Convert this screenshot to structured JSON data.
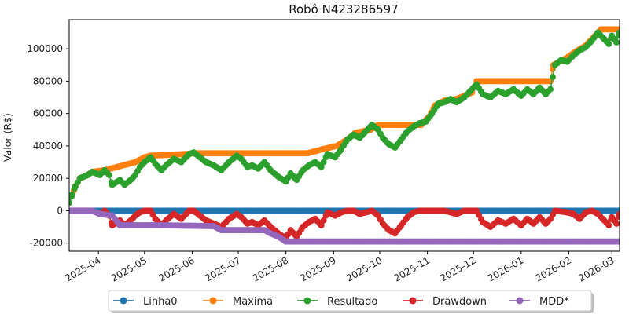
{
  "chart_data": {
    "type": "line",
    "title": "Robô N423286597",
    "xlabel": "",
    "ylabel": "Valor (R$)",
    "x_range": [
      "2025-03-13",
      "2026-03-06"
    ],
    "ylim": [
      -25000,
      118000
    ],
    "y_ticks": [
      -20000,
      0,
      20000,
      40000,
      60000,
      80000,
      100000
    ],
    "x_ticks": [
      "2025-04",
      "2025-05",
      "2025-06",
      "2025-07",
      "2025-08",
      "2025-09",
      "2025-10",
      "2025-11",
      "2025-12",
      "2026-01",
      "2026-02",
      "2026-03"
    ],
    "grid": false,
    "legend_position": "bottom-center",
    "marker": "circle",
    "series": [
      {
        "name": "Linha0",
        "color": "#1f77b4",
        "points": [
          [
            "2025-03-13",
            0
          ],
          [
            "2026-03-06",
            0
          ]
        ]
      },
      {
        "name": "Maxima",
        "color": "#ff7f0e",
        "points": [
          [
            "2025-03-13",
            5000
          ],
          [
            "2025-03-17",
            15000
          ],
          [
            "2025-03-20",
            20000
          ],
          [
            "2025-03-25",
            22000
          ],
          [
            "2025-03-28",
            24000
          ],
          [
            "2025-04-05",
            25000
          ],
          [
            "2025-04-25",
            30000
          ],
          [
            "2025-05-01",
            33000
          ],
          [
            "2025-05-05",
            34000
          ],
          [
            "2025-05-28",
            35000
          ],
          [
            "2025-06-02",
            35500
          ],
          [
            "2025-08-15",
            35500
          ],
          [
            "2025-08-25",
            38000
          ],
          [
            "2025-09-03",
            40000
          ],
          [
            "2025-09-10",
            44000
          ],
          [
            "2025-09-15",
            48000
          ],
          [
            "2025-09-25",
            50000
          ],
          [
            "2025-09-30",
            53000
          ],
          [
            "2025-10-28",
            53000
          ],
          [
            "2025-11-02",
            58000
          ],
          [
            "2025-11-06",
            65000
          ],
          [
            "2025-11-12",
            68000
          ],
          [
            "2025-11-20",
            69000
          ],
          [
            "2025-11-30",
            73000
          ],
          [
            "2025-12-03",
            80000
          ],
          [
            "2026-01-20",
            80000
          ],
          [
            "2026-01-22",
            90000
          ],
          [
            "2026-01-30",
            94000
          ],
          [
            "2026-02-05",
            98000
          ],
          [
            "2026-02-12",
            102000
          ],
          [
            "2026-02-18",
            108000
          ],
          [
            "2026-02-22",
            112000
          ],
          [
            "2026-03-06",
            112000
          ]
        ]
      },
      {
        "name": "Resultado",
        "color": "#2ca02c",
        "points": [
          [
            "2025-03-13",
            5000
          ],
          [
            "2025-03-15",
            10000
          ],
          [
            "2025-03-17",
            15000
          ],
          [
            "2025-03-20",
            20000
          ],
          [
            "2025-03-25",
            22000
          ],
          [
            "2025-03-28",
            24000
          ],
          [
            "2025-04-02",
            22000
          ],
          [
            "2025-04-05",
            25000
          ],
          [
            "2025-04-08",
            22000
          ],
          [
            "2025-04-10",
            16000
          ],
          [
            "2025-04-15",
            19000
          ],
          [
            "2025-04-18",
            16000
          ],
          [
            "2025-04-22",
            19000
          ],
          [
            "2025-04-25",
            22000
          ],
          [
            "2025-04-28",
            27000
          ],
          [
            "2025-05-01",
            30000
          ],
          [
            "2025-05-05",
            33000
          ],
          [
            "2025-05-08",
            29000
          ],
          [
            "2025-05-12",
            25000
          ],
          [
            "2025-05-15",
            28000
          ],
          [
            "2025-05-20",
            32000
          ],
          [
            "2025-05-25",
            30000
          ],
          [
            "2025-05-30",
            35000
          ],
          [
            "2025-06-02",
            36000
          ],
          [
            "2025-06-06",
            33000
          ],
          [
            "2025-06-10",
            30000
          ],
          [
            "2025-06-15",
            28000
          ],
          [
            "2025-06-20",
            25000
          ],
          [
            "2025-06-25",
            30000
          ],
          [
            "2025-06-30",
            34000
          ],
          [
            "2025-07-03",
            32000
          ],
          [
            "2025-07-07",
            27000
          ],
          [
            "2025-07-10",
            28000
          ],
          [
            "2025-07-14",
            26000
          ],
          [
            "2025-07-18",
            30000
          ],
          [
            "2025-07-22",
            25000
          ],
          [
            "2025-07-27",
            21000
          ],
          [
            "2025-08-01",
            18000
          ],
          [
            "2025-08-04",
            23000
          ],
          [
            "2025-08-08",
            19000
          ],
          [
            "2025-08-12",
            25000
          ],
          [
            "2025-08-16",
            28000
          ],
          [
            "2025-08-20",
            30000
          ],
          [
            "2025-08-24",
            27000
          ],
          [
            "2025-08-28",
            35000
          ],
          [
            "2025-09-02",
            33000
          ],
          [
            "2025-09-06",
            38000
          ],
          [
            "2025-09-10",
            44000
          ],
          [
            "2025-09-14",
            47000
          ],
          [
            "2025-09-18",
            45000
          ],
          [
            "2025-09-22",
            49000
          ],
          [
            "2025-09-26",
            53000
          ],
          [
            "2025-09-30",
            50000
          ],
          [
            "2025-10-03",
            45000
          ],
          [
            "2025-10-07",
            41000
          ],
          [
            "2025-10-11",
            39000
          ],
          [
            "2025-10-15",
            44000
          ],
          [
            "2025-10-19",
            49000
          ],
          [
            "2025-10-23",
            52000
          ],
          [
            "2025-10-27",
            54000
          ],
          [
            "2025-10-31",
            55000
          ],
          [
            "2025-11-04",
            60000
          ],
          [
            "2025-11-08",
            66000
          ],
          [
            "2025-11-12",
            67000
          ],
          [
            "2025-11-16",
            69000
          ],
          [
            "2025-11-20",
            67000
          ],
          [
            "2025-11-25",
            70000
          ],
          [
            "2025-11-29",
            74000
          ],
          [
            "2025-12-03",
            78000
          ],
          [
            "2025-12-07",
            72000
          ],
          [
            "2025-12-12",
            70000
          ],
          [
            "2025-12-17",
            74000
          ],
          [
            "2025-12-22",
            72000
          ],
          [
            "2025-12-27",
            75000
          ],
          [
            "2026-01-01",
            71000
          ],
          [
            "2026-01-05",
            75000
          ],
          [
            "2026-01-09",
            72000
          ],
          [
            "2026-01-13",
            76000
          ],
          [
            "2026-01-17",
            72000
          ],
          [
            "2026-01-20",
            75000
          ],
          [
            "2026-01-23",
            90000
          ],
          [
            "2026-01-27",
            93000
          ],
          [
            "2026-01-31",
            92000
          ],
          [
            "2026-02-04",
            96000
          ],
          [
            "2026-02-08",
            99000
          ],
          [
            "2026-02-12",
            101000
          ],
          [
            "2026-02-16",
            105000
          ],
          [
            "2026-02-20",
            110000
          ],
          [
            "2026-02-24",
            106000
          ],
          [
            "2026-02-27",
            103000
          ],
          [
            "2026-03-01",
            108000
          ],
          [
            "2026-03-04",
            104000
          ],
          [
            "2026-03-06",
            110000
          ]
        ]
      },
      {
        "name": "Drawdown",
        "color": "#d62728",
        "points": [
          [
            "2025-03-13",
            0
          ],
          [
            "2025-03-28",
            0
          ],
          [
            "2025-04-02",
            -2000
          ],
          [
            "2025-04-05",
            0
          ],
          [
            "2025-04-08",
            -3000
          ],
          [
            "2025-04-10",
            -9000
          ],
          [
            "2025-04-15",
            -6000
          ],
          [
            "2025-04-18",
            -9000
          ],
          [
            "2025-04-22",
            -6000
          ],
          [
            "2025-04-25",
            -3000
          ],
          [
            "2025-04-28",
            -1000
          ],
          [
            "2025-05-01",
            0
          ],
          [
            "2025-05-05",
            0
          ],
          [
            "2025-05-08",
            -5000
          ],
          [
            "2025-05-12",
            -9000
          ],
          [
            "2025-05-15",
            -6000
          ],
          [
            "2025-05-20",
            -2000
          ],
          [
            "2025-05-25",
            -5000
          ],
          [
            "2025-05-30",
            0
          ],
          [
            "2025-06-02",
            0
          ],
          [
            "2025-06-06",
            -3000
          ],
          [
            "2025-06-10",
            -6000
          ],
          [
            "2025-06-15",
            -8000
          ],
          [
            "2025-06-20",
            -10000
          ],
          [
            "2025-06-25",
            -5000
          ],
          [
            "2025-06-30",
            -2000
          ],
          [
            "2025-07-03",
            -4000
          ],
          [
            "2025-07-07",
            -8000
          ],
          [
            "2025-07-10",
            -7000
          ],
          [
            "2025-07-14",
            -9000
          ],
          [
            "2025-07-18",
            -6000
          ],
          [
            "2025-07-22",
            -10000
          ],
          [
            "2025-07-27",
            -14000
          ],
          [
            "2025-08-01",
            -17000
          ],
          [
            "2025-08-04",
            -12000
          ],
          [
            "2025-08-08",
            -16000
          ],
          [
            "2025-08-12",
            -10000
          ],
          [
            "2025-08-16",
            -7000
          ],
          [
            "2025-08-20",
            -5000
          ],
          [
            "2025-08-24",
            -9000
          ],
          [
            "2025-08-28",
            -1000
          ],
          [
            "2025-09-02",
            -3000
          ],
          [
            "2025-09-06",
            -1000
          ],
          [
            "2025-09-10",
            0
          ],
          [
            "2025-09-14",
            0
          ],
          [
            "2025-09-18",
            -2000
          ],
          [
            "2025-09-22",
            -1000
          ],
          [
            "2025-09-26",
            0
          ],
          [
            "2025-09-30",
            -3000
          ],
          [
            "2025-10-03",
            -8000
          ],
          [
            "2025-10-07",
            -12000
          ],
          [
            "2025-10-11",
            -14000
          ],
          [
            "2025-10-15",
            -9000
          ],
          [
            "2025-10-19",
            -4000
          ],
          [
            "2025-10-23",
            -1000
          ],
          [
            "2025-10-27",
            0
          ],
          [
            "2025-11-04",
            0
          ],
          [
            "2025-11-12",
            0
          ],
          [
            "2025-11-20",
            -2000
          ],
          [
            "2025-11-25",
            0
          ],
          [
            "2025-11-29",
            0
          ],
          [
            "2025-12-03",
            0
          ],
          [
            "2025-12-07",
            -7000
          ],
          [
            "2025-12-12",
            -10000
          ],
          [
            "2025-12-17",
            -6000
          ],
          [
            "2025-12-22",
            -8000
          ],
          [
            "2025-12-27",
            -5000
          ],
          [
            "2026-01-01",
            -9000
          ],
          [
            "2026-01-05",
            -5000
          ],
          [
            "2026-01-09",
            -8000
          ],
          [
            "2026-01-13",
            -4000
          ],
          [
            "2026-01-17",
            -8000
          ],
          [
            "2026-01-20",
            -5000
          ],
          [
            "2026-01-23",
            0
          ],
          [
            "2026-01-31",
            -1000
          ],
          [
            "2026-02-04",
            -2000
          ],
          [
            "2026-02-08",
            -5000
          ],
          [
            "2026-02-12",
            -1000
          ],
          [
            "2026-02-16",
            0
          ],
          [
            "2026-02-20",
            -2000
          ],
          [
            "2026-02-24",
            -6000
          ],
          [
            "2026-02-27",
            -9000
          ],
          [
            "2026-03-01",
            -4000
          ],
          [
            "2026-03-04",
            -8000
          ],
          [
            "2026-03-06",
            -2000
          ]
        ]
      },
      {
        "name": "MDD*",
        "color": "#9467bd",
        "points": [
          [
            "2025-03-13",
            0
          ],
          [
            "2025-03-28",
            0
          ],
          [
            "2025-04-02",
            -2000
          ],
          [
            "2025-04-10",
            -3000
          ],
          [
            "2025-04-15",
            -9000
          ],
          [
            "2025-05-12",
            -9000
          ],
          [
            "2025-06-15",
            -9500
          ],
          [
            "2025-06-20",
            -12000
          ],
          [
            "2025-07-18",
            -12000
          ],
          [
            "2025-07-22",
            -14000
          ],
          [
            "2025-07-27",
            -16000
          ],
          [
            "2025-08-01",
            -19000
          ],
          [
            "2026-03-06",
            -19000
          ]
        ]
      }
    ]
  }
}
